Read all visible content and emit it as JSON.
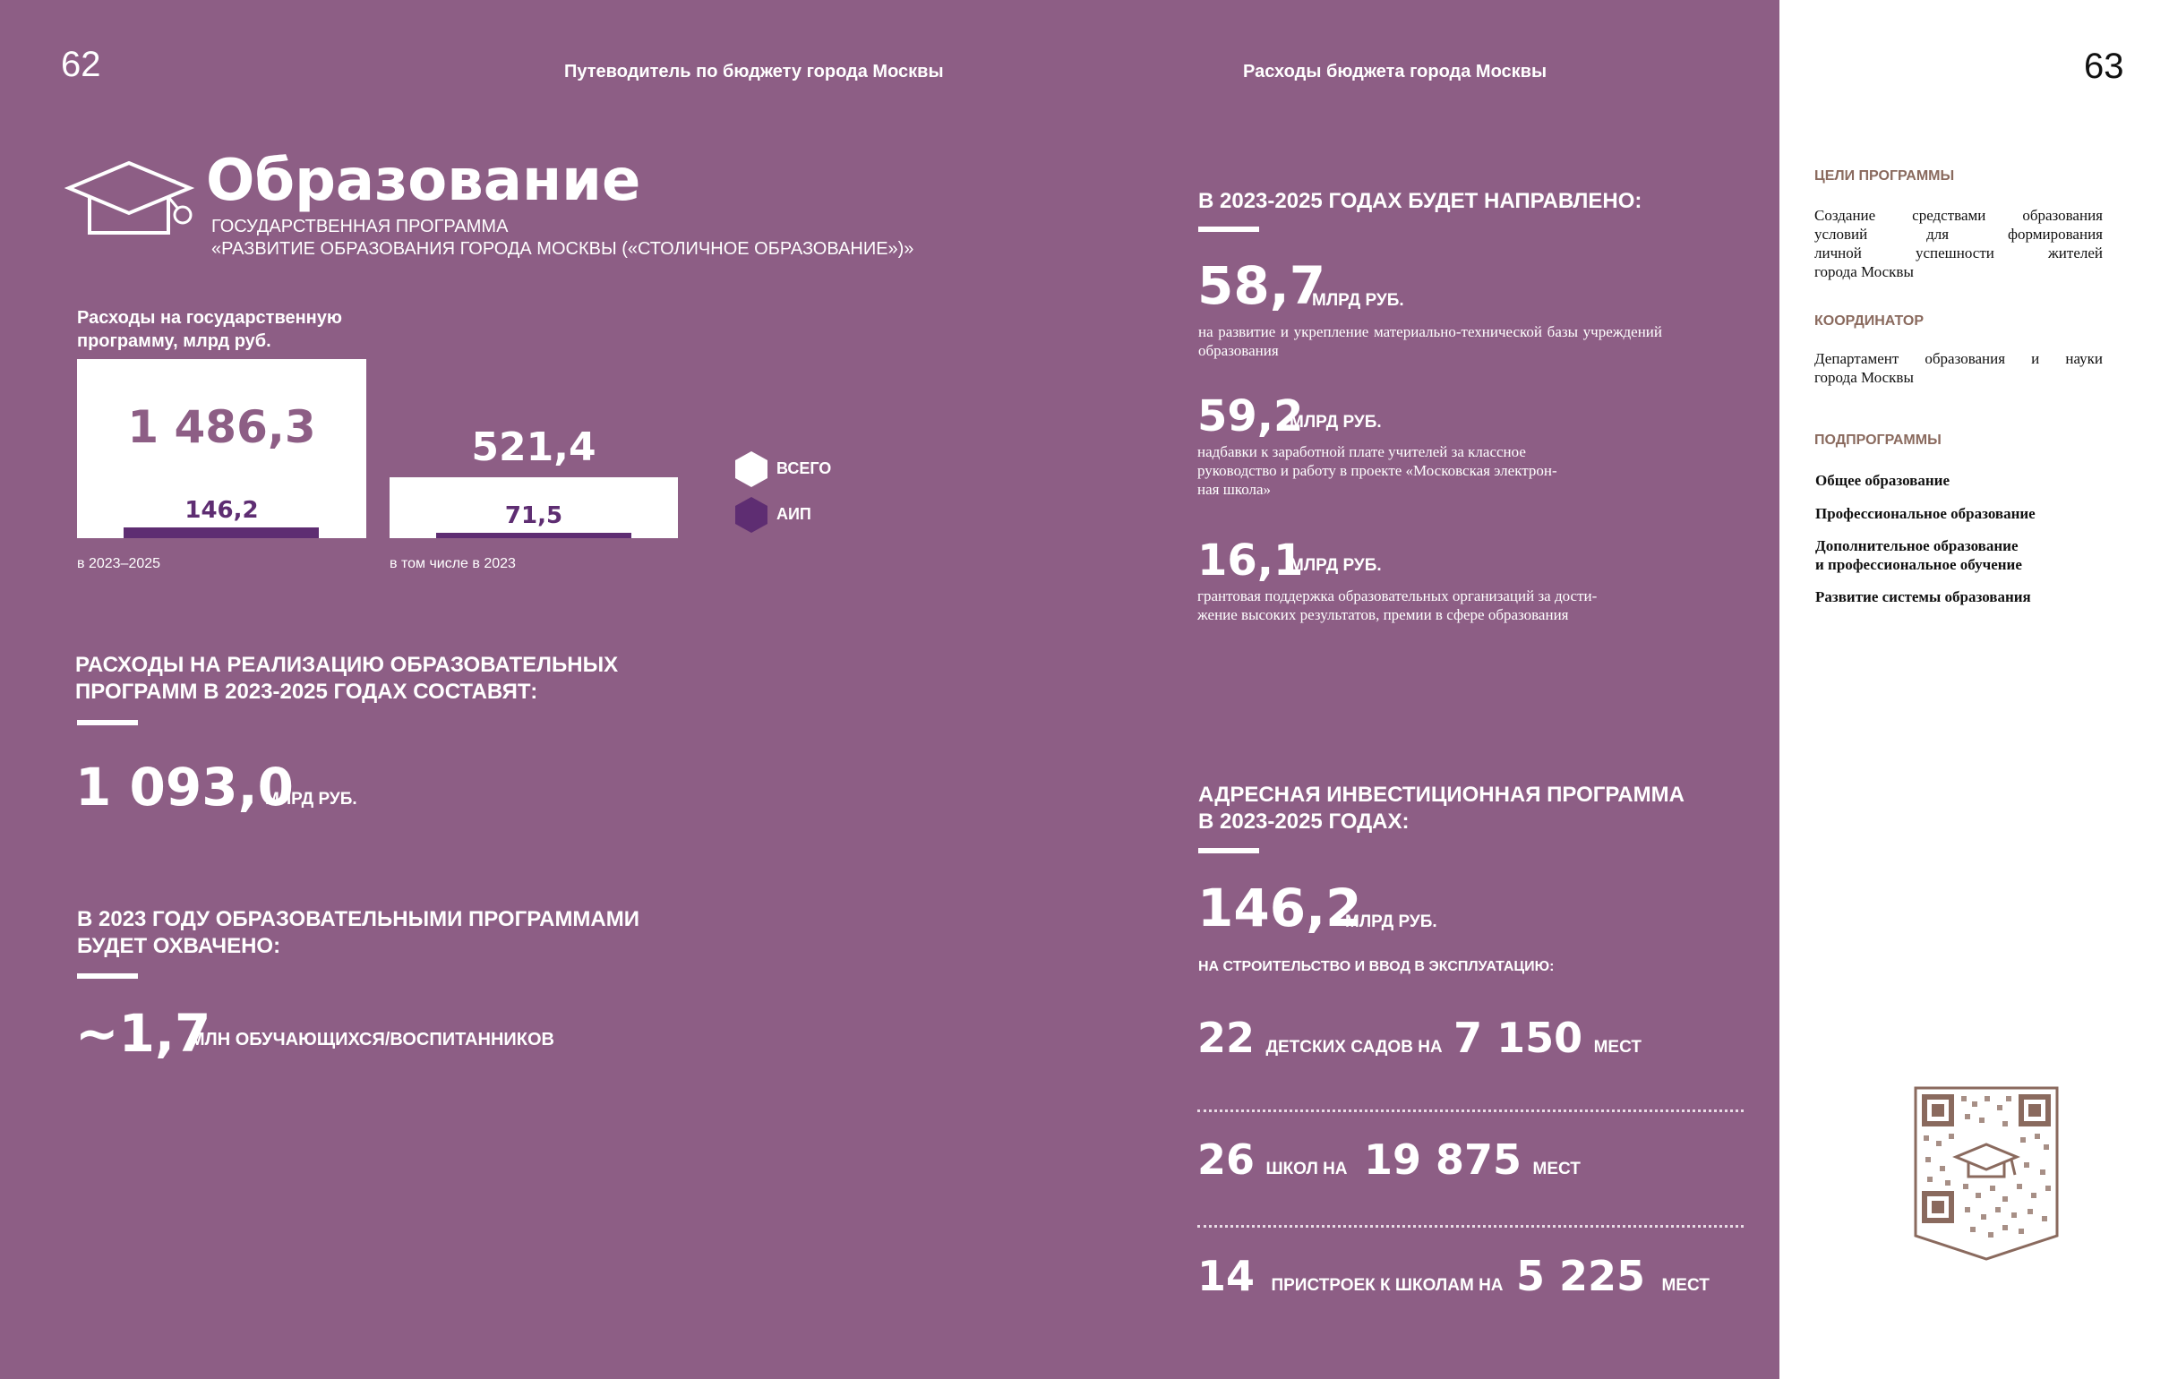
{
  "colors": {
    "purple_bg": "#8d5e85",
    "dark_purple": "#5e2d72",
    "white": "#ffffff",
    "brown": "#8a6a5e"
  },
  "header": {
    "page_left": "62",
    "page_right": "63",
    "running_left": "Путеводитель по бюджету города Москвы",
    "running_right": "Расходы бюджета города Москвы"
  },
  "title": {
    "heading": "Образование",
    "program_line1": "ГОСУДАРСТВЕННАЯ ПРОГРАММА",
    "program_line2": "«РАЗВИТИЕ ОБРАЗОВАНИЯ ГОРОДА МОСКВЫ («СТОЛИЧНОЕ ОБРАЗОВАНИЕ»)»",
    "icon": "graduation-cap-icon"
  },
  "chart_data": {
    "type": "bar",
    "title": "Расходы на государственную программу, млрд руб.",
    "categories": [
      "в 2023–2025",
      "в том числе в 2023"
    ],
    "series": [
      {
        "name": "ВСЕГО",
        "values": [
          1486.3,
          521.4
        ],
        "labels": [
          "1 486,3",
          "521,4"
        ]
      },
      {
        "name": "АИП",
        "values": [
          146.2,
          71.5
        ],
        "labels": [
          "146,2",
          "71,5"
        ]
      }
    ],
    "legend": "right"
  },
  "legend": {
    "total": "ВСЕГО",
    "aip": "АИП"
  },
  "programs": {
    "heading_l1": "РАСХОДЫ НА РЕАЛИЗАЦИЮ ОБРАЗОВАТЕЛЬНЫХ",
    "heading_l2": "ПРОГРАММ В 2023-2025 ГОДАХ СОСТАВЯТ:",
    "value": "1 093,0",
    "unit": "МЛРД РУБ."
  },
  "coverage": {
    "heading_l1": "В 2023 ГОДУ ОБРАЗОВАТЕЛЬНЫМИ ПРОГРАММАМИ",
    "heading_l2": "БУДЕТ ОХВАЧЕНО:",
    "value": "~1,7",
    "unit": "МЛН ОБУЧАЮЩИХСЯ/ВОСПИТАННИКОВ"
  },
  "directed": {
    "heading": "В 2023-2025 ГОДАХ БУДЕТ НАПРАВЛЕНО:",
    "items": [
      {
        "value": "58,7",
        "unit": "МЛРД РУБ.",
        "desc": "на развитие и укрепление материально-технической базы учреждений образования"
      },
      {
        "value": "59,2",
        "unit": "МЛРД РУБ.",
        "desc_l1": "надбавки к заработной плате учителей за классное",
        "desc_l2": "руководство и работу в проекте «Московская электрон-",
        "desc_l3": "ная школа»"
      },
      {
        "value": "16,1",
        "unit": "МЛРД РУБ.",
        "desc_l1": "грантовая поддержка образовательных организаций за дости-",
        "desc_l2": "жение высоких результатов, премии в сфере образования"
      }
    ]
  },
  "aip": {
    "heading_l1": "АДРЕСНАЯ ИНВЕСТИЦИОННАЯ ПРОГРАММА",
    "heading_l2": "В 2023-2025 ГОДАХ:",
    "value": "146,2",
    "unit": "МЛРД РУБ.",
    "subheading": "НА СТРОИТЕЛЬСТВО И ВВОД В ЭКСПЛУАТАЦИЮ:",
    "rows": [
      {
        "count": "22",
        "label": "ДЕТСКИХ САДОВ НА",
        "places": "7 150",
        "unit": "МЕСТ"
      },
      {
        "count": "26",
        "label": "ШКОЛ НА",
        "places": "19 875",
        "unit": "МЕСТ"
      },
      {
        "count": "14",
        "label": "ПРИСТРОЕК К ШКОЛАМ НА",
        "places": "5 225",
        "unit": "МЕСТ"
      }
    ]
  },
  "sidebar": {
    "goals_title": "ЦЕЛИ ПРОГРАММЫ",
    "goals_l1": "Создание средствами образования",
    "goals_l2": "условий для формирования",
    "goals_l3": "личной успешности жителей",
    "goals_l4": "города Москвы",
    "coordinator_title": "КООРДИНАТОР",
    "coordinator_l1": "Департамент образования и науки",
    "coordinator_l2": "города Москвы",
    "subprograms_title": "ПОДПРОГРАММЫ",
    "sub1": "Общее образование",
    "sub2": "Профессиональное образование",
    "sub3_l1": "Дополнительное образование",
    "sub3_l2": "и профессиональное обучение",
    "sub4": "Развитие системы образования",
    "qr_icon": "qr-code-icon"
  }
}
